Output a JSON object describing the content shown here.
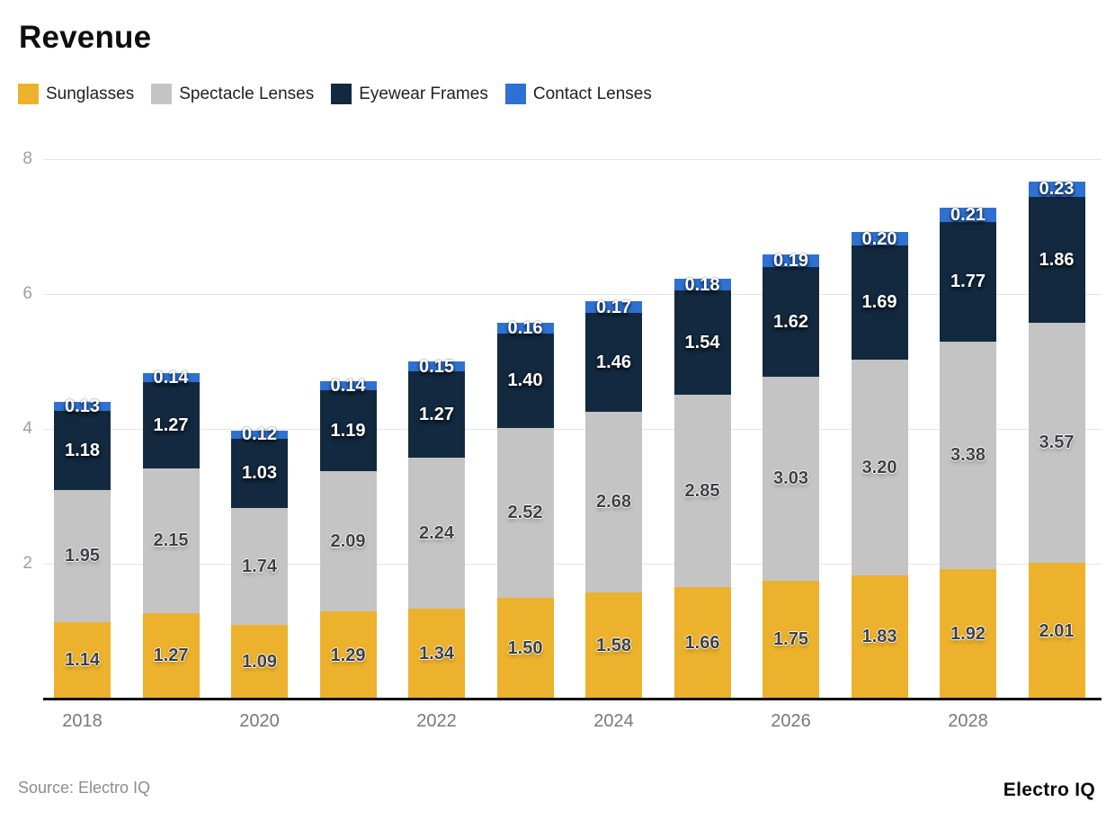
{
  "title": "Revenue",
  "footer": {
    "source": "Source: Electro IQ",
    "brand": "Electro IQ"
  },
  "chart_data": {
    "type": "bar",
    "stacked": true,
    "title": "Revenue",
    "categories": [
      "2018",
      "2019",
      "2020",
      "2021",
      "2022",
      "2023",
      "2024",
      "2025",
      "2026",
      "2027",
      "2028",
      "2029"
    ],
    "x_tick_labels": [
      "2018",
      "2020",
      "2022",
      "2024",
      "2026",
      "2028"
    ],
    "x_tick_interval": 2,
    "series": [
      {
        "name": "Sunglasses",
        "color": "#ECB22D",
        "label_style": "dark",
        "values": [
          1.14,
          1.27,
          1.09,
          1.29,
          1.34,
          1.5,
          1.58,
          1.66,
          1.75,
          1.83,
          1.92,
          2.01
        ]
      },
      {
        "name": "Spectacle Lenses",
        "color": "#C4C4C4",
        "label_style": "dark",
        "values": [
          1.95,
          2.15,
          1.74,
          2.09,
          2.24,
          2.52,
          2.68,
          2.85,
          3.03,
          3.2,
          3.38,
          3.57
        ]
      },
      {
        "name": "Eyewear Frames",
        "color": "#13293F",
        "label_style": "light",
        "values": [
          1.18,
          1.27,
          1.03,
          1.19,
          1.27,
          1.4,
          1.46,
          1.54,
          1.62,
          1.69,
          1.77,
          1.86
        ]
      },
      {
        "name": "Contact Lenses",
        "color": "#2E71D2",
        "label_style": "light",
        "values": [
          0.13,
          0.14,
          0.12,
          0.14,
          0.15,
          0.16,
          0.17,
          0.18,
          0.19,
          0.2,
          0.21,
          0.23
        ]
      }
    ],
    "ylim": [
      0,
      8
    ],
    "yticks": [
      2,
      4,
      6,
      8
    ],
    "value_decimals": 2,
    "grid": true,
    "legend_position": "top",
    "colors": {
      "gridline": "#e5e5e5",
      "axis_line": "#101010",
      "y_tick_text": "#9aa0a6",
      "x_tick_text": "#77787b",
      "value_label_dark": "#3f4043",
      "value_label_light": "#ffffff"
    }
  }
}
